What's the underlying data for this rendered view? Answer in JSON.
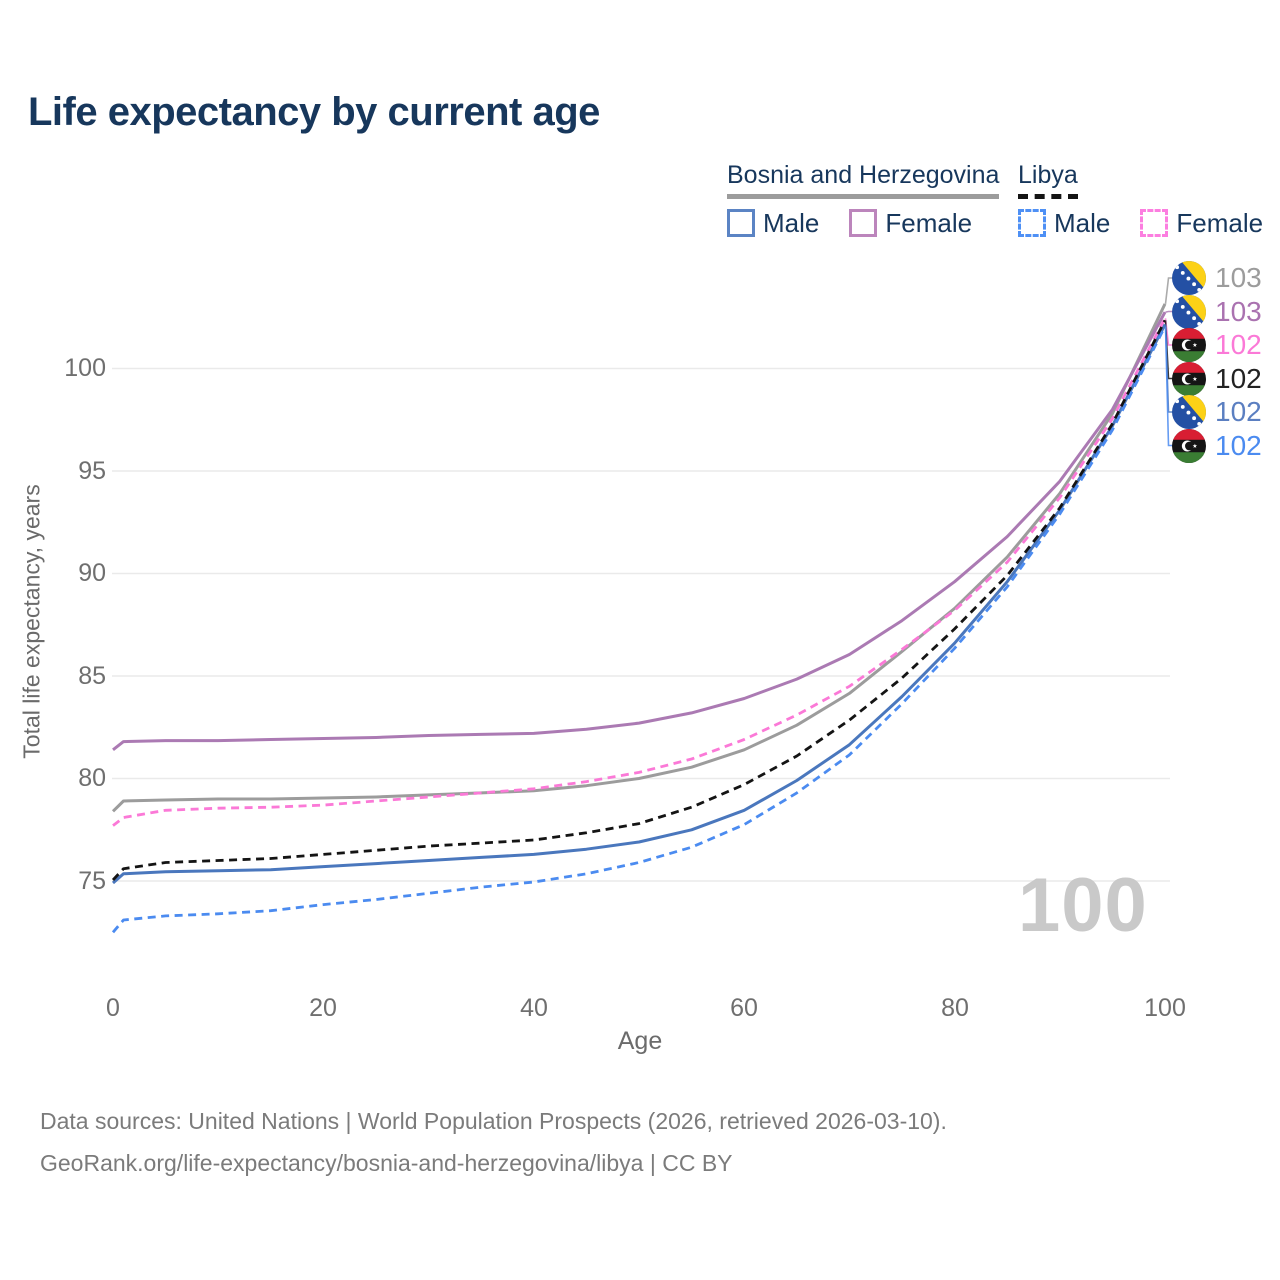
{
  "chart": {
    "title": "Life expectancy by current age",
    "y_axis_title": "Total life expectancy, years",
    "x_axis_title": "Age",
    "age_counter": "100",
    "source_line1": "Data sources: United Nations | World Population Prospects (2026, retrieved 2026-03-10).",
    "source_line2": "GeoRank.org/life-expectancy/bosnia-and-herzegovina/libya | CC BY",
    "colors": {
      "title_text": "#17375c",
      "axis_text": "#6f6f6f",
      "gridline": "#eaeaea",
      "watermark": "#c9c9c9",
      "bosnia_male": "#4a77bd",
      "bosnia_female": "#ab7ab3",
      "bosnia_total": "#9c9c9c",
      "libya_male": "#4b8bf0",
      "libya_female": "#fb79d7",
      "libya_total": "#141414"
    }
  },
  "legend": {
    "groups": [
      {
        "label": "Bosnia and Herzegovina",
        "line_style": "solid",
        "underline_color": "#9c9c9c",
        "items": [
          {
            "label": "Male",
            "color": "#4a77bd",
            "style": "solid"
          },
          {
            "label": "Female",
            "color": "#ab7ab3",
            "style": "solid"
          }
        ]
      },
      {
        "label": "Libya",
        "line_style": "dashed",
        "underline_color": "#141414",
        "items": [
          {
            "label": "Male",
            "color": "#4b8bf0",
            "style": "dashed"
          },
          {
            "label": "Female",
            "color": "#fb79d7",
            "style": "dashed"
          }
        ]
      }
    ]
  },
  "axes": {
    "y_tick_labels": [
      "100",
      "95",
      "90",
      "85",
      "80",
      "75"
    ],
    "x_tick_labels": [
      "0",
      "20",
      "40",
      "60",
      "80",
      "100"
    ]
  },
  "chart_data": {
    "type": "line",
    "title": "Life expectancy by current age",
    "xlabel": "Age",
    "ylabel": "Total life expectancy, years",
    "xlim": [
      0,
      100
    ],
    "ylim": [
      72,
      103.5
    ],
    "grid": "horizontal",
    "x": [
      0,
      1,
      5,
      10,
      15,
      20,
      25,
      30,
      35,
      40,
      45,
      50,
      55,
      60,
      65,
      70,
      75,
      80,
      85,
      90,
      95,
      100
    ],
    "series": [
      {
        "id": "bosnia-total",
        "name": "Bosnia and Herzegovina — Total",
        "color": "#9c9c9c",
        "dash": "solid",
        "end_label": "103",
        "values": [
          78.4,
          78.9,
          78.95,
          79.0,
          79.0,
          79.05,
          79.1,
          79.2,
          79.3,
          79.4,
          79.65,
          80.0,
          80.55,
          81.4,
          82.6,
          84.15,
          86.2,
          88.3,
          90.8,
          93.9,
          97.8,
          103.15
        ]
      },
      {
        "id": "bosnia-female",
        "name": "Bosnia and Herzegovina — Female",
        "color": "#ab7ab3",
        "dash": "solid",
        "end_label": "103",
        "values": [
          81.4,
          81.8,
          81.85,
          81.85,
          81.9,
          81.95,
          82.0,
          82.1,
          82.15,
          82.2,
          82.4,
          82.7,
          83.2,
          83.9,
          84.85,
          86.05,
          87.7,
          89.6,
          91.8,
          94.5,
          98.0,
          102.75
        ]
      },
      {
        "id": "bosnia-male",
        "name": "Bosnia and Herzegovina — Male",
        "color": "#4a77bd",
        "dash": "solid",
        "end_label": "102",
        "values": [
          74.9,
          75.35,
          75.45,
          75.5,
          75.55,
          75.7,
          75.85,
          76.0,
          76.15,
          76.3,
          76.55,
          76.9,
          77.5,
          78.45,
          79.9,
          81.65,
          84.0,
          86.6,
          89.6,
          93.1,
          97.2,
          102.15
        ]
      },
      {
        "id": "libya-female",
        "name": "Libya — Female",
        "color": "#fb79d7",
        "dash": "dashed",
        "end_label": "102",
        "values": [
          77.7,
          78.1,
          78.45,
          78.55,
          78.6,
          78.7,
          78.9,
          79.1,
          79.3,
          79.5,
          79.85,
          80.3,
          80.95,
          81.9,
          83.1,
          84.5,
          86.3,
          88.2,
          90.55,
          93.7,
          97.55,
          102.45
        ]
      },
      {
        "id": "libya-total",
        "name": "Libya — Total",
        "color": "#141414",
        "dash": "dashed",
        "end_label": "102",
        "values": [
          75.05,
          75.6,
          75.9,
          76.0,
          76.1,
          76.3,
          76.5,
          76.7,
          76.85,
          77.0,
          77.35,
          77.8,
          78.6,
          79.7,
          81.1,
          82.85,
          84.9,
          87.3,
          89.9,
          93.2,
          97.3,
          102.35
        ]
      },
      {
        "id": "libya-male",
        "name": "Libya — Male",
        "color": "#4b8bf0",
        "dash": "dashed",
        "end_label": "102",
        "values": [
          72.5,
          73.1,
          73.3,
          73.4,
          73.55,
          73.85,
          74.1,
          74.4,
          74.7,
          74.95,
          75.35,
          75.9,
          76.65,
          77.75,
          79.3,
          81.15,
          83.65,
          86.35,
          89.35,
          92.9,
          97.0,
          102.05
        ]
      }
    ]
  },
  "rank_labels": [
    {
      "flag": "bosnia",
      "value": "103",
      "color": "#9c9c9c",
      "series": "bosnia-total"
    },
    {
      "flag": "bosnia",
      "value": "103",
      "color": "#aa72b0",
      "series": "bosnia-female"
    },
    {
      "flag": "libya",
      "value": "102",
      "color": "#fb79d7",
      "series": "libya-female"
    },
    {
      "flag": "libya",
      "value": "102",
      "color": "#222222",
      "series": "libya-total"
    },
    {
      "flag": "bosnia",
      "value": "102",
      "color": "#5b7fc1",
      "series": "bosnia-male"
    },
    {
      "flag": "libya",
      "value": "102",
      "color": "#4b8bf0",
      "series": "libya-male"
    }
  ]
}
